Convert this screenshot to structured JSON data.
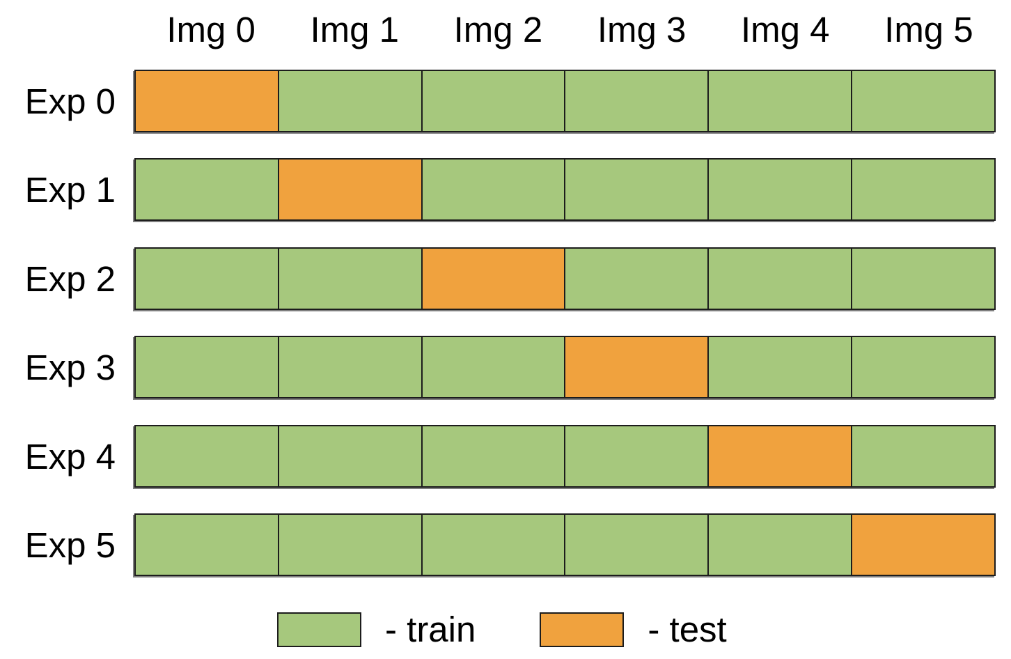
{
  "figure": {
    "columns": [
      "Img 0",
      "Img 1",
      "Img 2",
      "Img 3",
      "Img 4",
      "Img 5"
    ],
    "rows": [
      {
        "label": "Exp 0",
        "cells": [
          "test",
          "train",
          "train",
          "train",
          "train",
          "train"
        ]
      },
      {
        "label": "Exp 1",
        "cells": [
          "train",
          "test",
          "train",
          "train",
          "train",
          "train"
        ]
      },
      {
        "label": "Exp 2",
        "cells": [
          "train",
          "train",
          "test",
          "train",
          "train",
          "train"
        ]
      },
      {
        "label": "Exp 3",
        "cells": [
          "train",
          "train",
          "train",
          "test",
          "train",
          "train"
        ]
      },
      {
        "label": "Exp 4",
        "cells": [
          "train",
          "train",
          "train",
          "train",
          "test",
          "train"
        ]
      },
      {
        "label": "Exp 5",
        "cells": [
          "train",
          "train",
          "train",
          "train",
          "train",
          "test"
        ]
      }
    ],
    "legend": {
      "train_label": "- train",
      "test_label": "- test"
    },
    "colors": {
      "train": "#a6c87d",
      "test": "#f0a23e",
      "border": "#1c1c1c",
      "shadow": "#7f7f7f",
      "text": "#000000",
      "background": "#ffffff"
    }
  },
  "chart_data": {
    "type": "heatmap",
    "title": "",
    "x_categories": [
      "Img 0",
      "Img 1",
      "Img 2",
      "Img 3",
      "Img 4",
      "Img 5"
    ],
    "y_categories": [
      "Exp 0",
      "Exp 1",
      "Exp 2",
      "Exp 3",
      "Exp 4",
      "Exp 5"
    ],
    "values": [
      [
        "test",
        "train",
        "train",
        "train",
        "train",
        "train"
      ],
      [
        "train",
        "test",
        "train",
        "train",
        "train",
        "train"
      ],
      [
        "train",
        "train",
        "test",
        "train",
        "train",
        "train"
      ],
      [
        "train",
        "train",
        "train",
        "test",
        "train",
        "train"
      ],
      [
        "train",
        "train",
        "train",
        "train",
        "test",
        "train"
      ],
      [
        "train",
        "train",
        "train",
        "train",
        "train",
        "test"
      ]
    ],
    "legend_entries": [
      "- train",
      "- test"
    ],
    "value_colors": {
      "train": "#a6c87d",
      "test": "#f0a23e"
    },
    "legend_position": "bottom",
    "grid": true
  }
}
